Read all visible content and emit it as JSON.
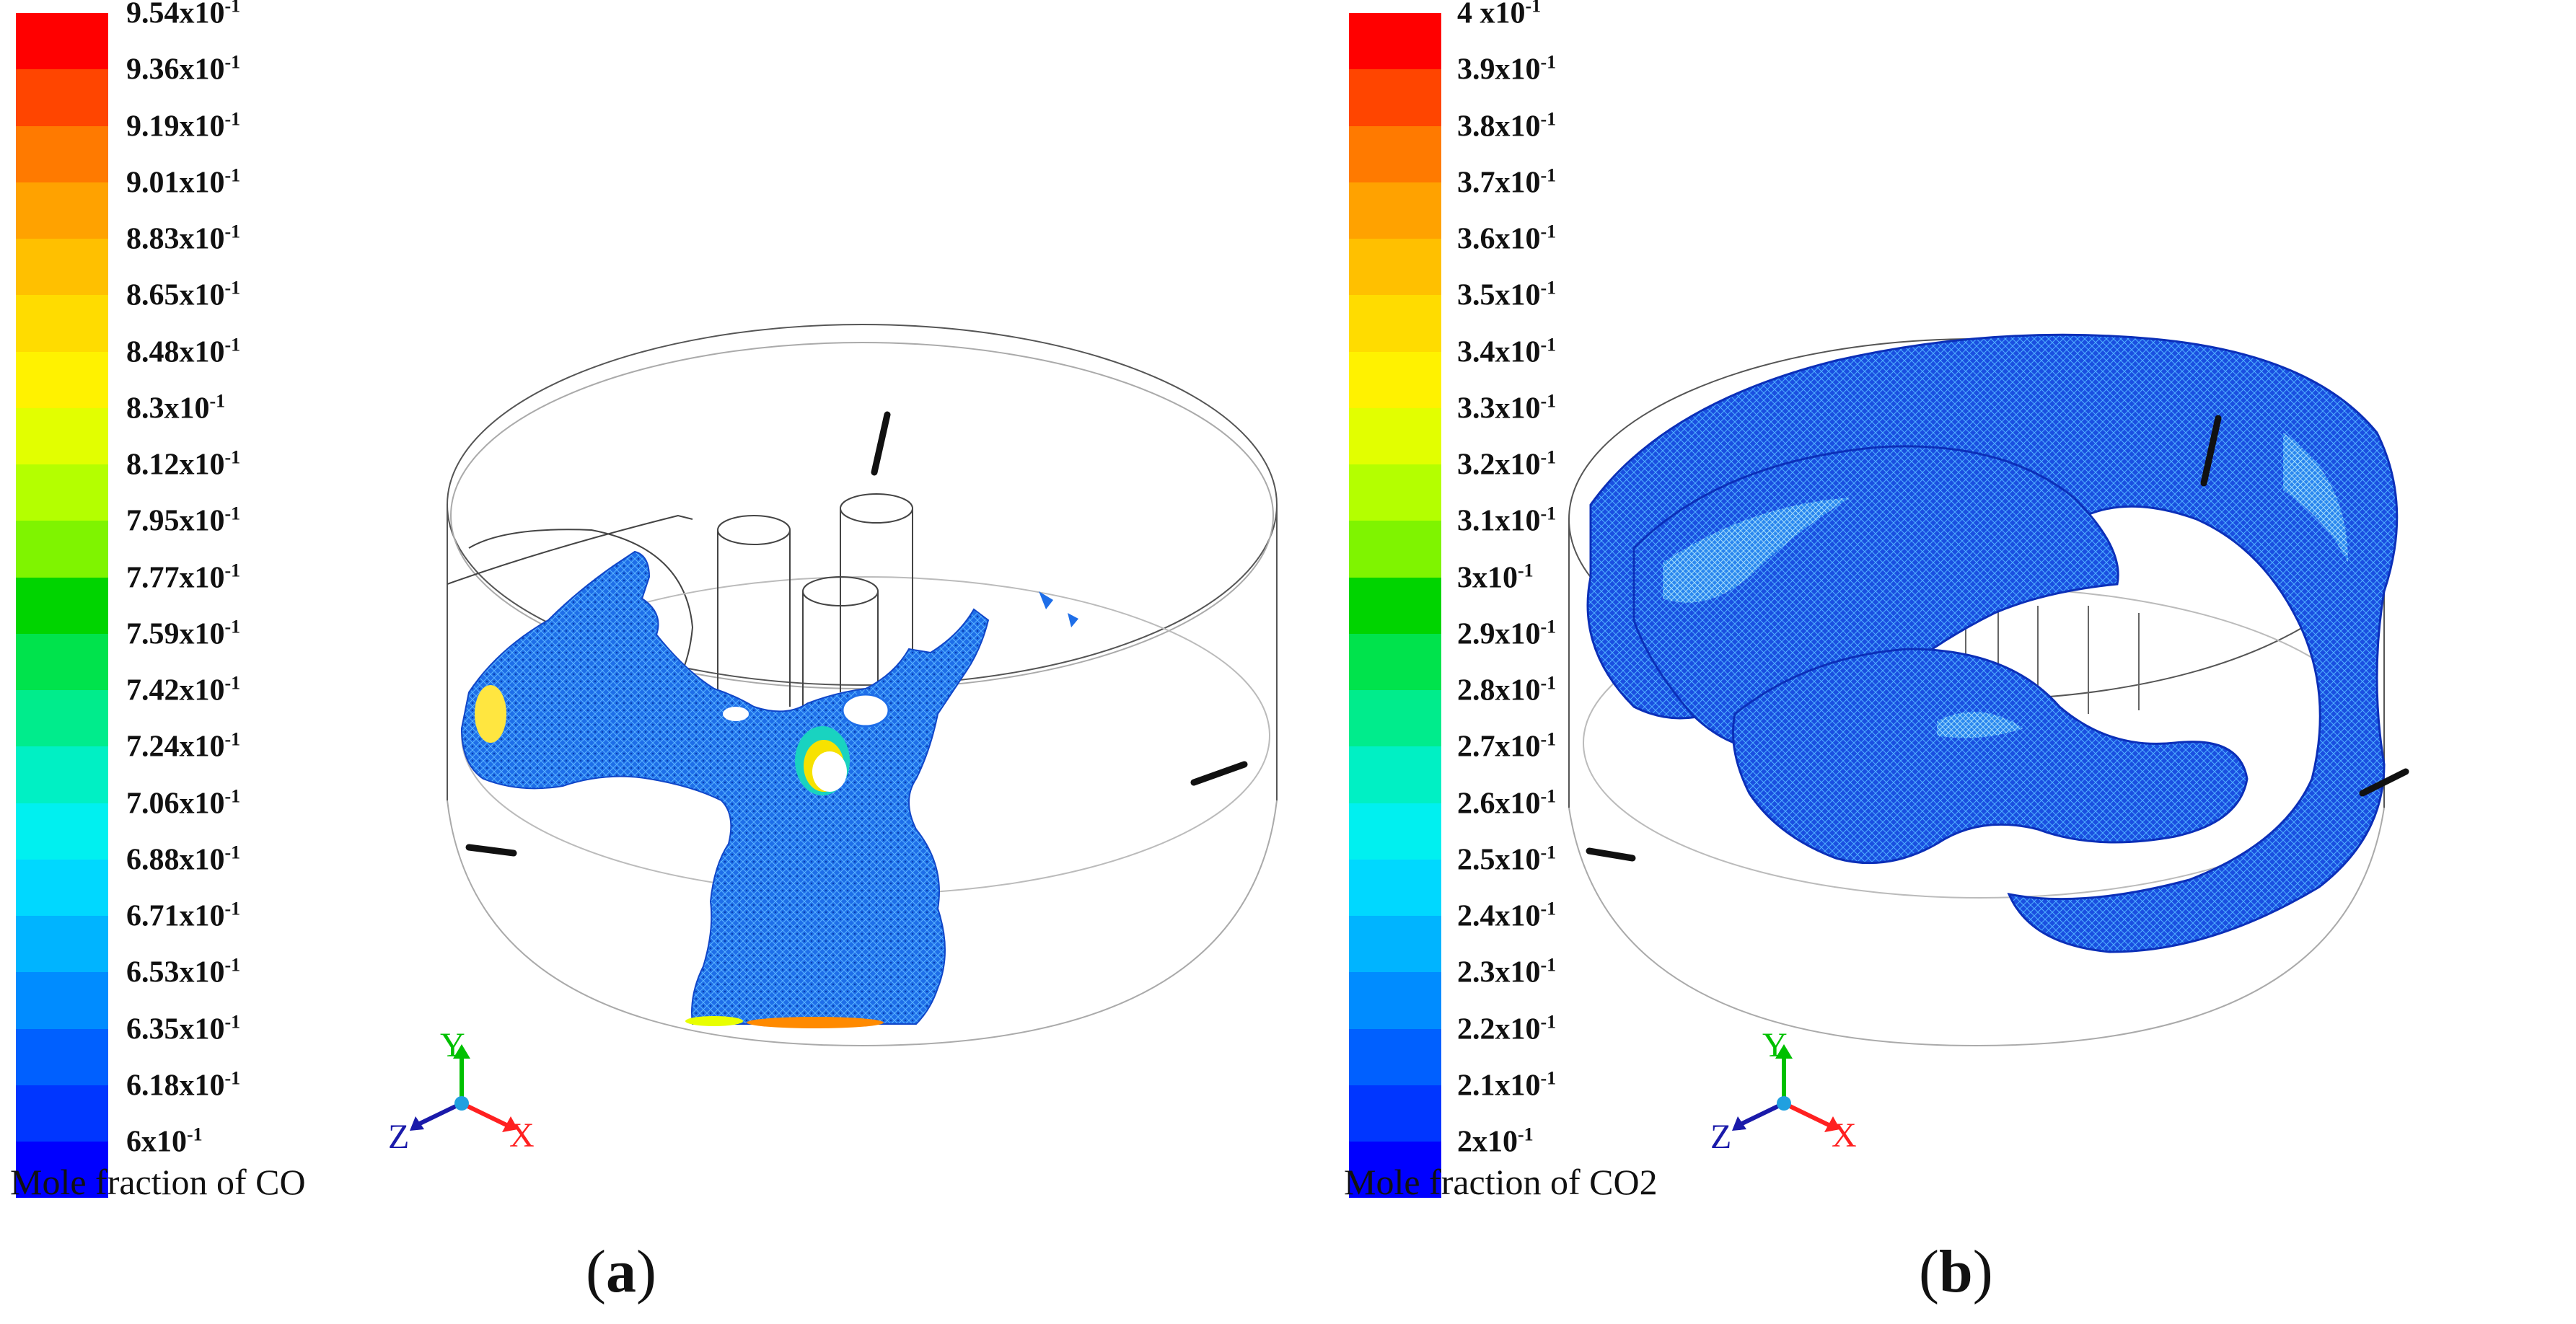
{
  "panels": [
    {
      "id": "a",
      "caption_letter": "a",
      "colorbar_title": "Mole fraction of CO",
      "colorbar_labels": [
        "9.54x10",
        "9.36x10",
        "9.19x10",
        "9.01x10",
        "8.83x10",
        "8.65x10",
        "8.48x10",
        "8.3x10",
        "8.12x10",
        "7.95x10",
        "7.77x10",
        "7.59x10",
        "7.42x10",
        "7.24x10",
        "7.06x10",
        "6.88x10",
        "6.71x10",
        "6.53x10",
        "6.35x10",
        "6.18x10",
        "6x10"
      ],
      "exponent": "-1",
      "axes": {
        "y": "Y",
        "z": "Z",
        "x": "X"
      }
    },
    {
      "id": "b",
      "caption_letter": "b",
      "colorbar_title": "Mole fraction of CO2",
      "colorbar_labels": [
        "4 x10",
        "3.9x10",
        "3.8x10",
        "3.7x10",
        "3.6x10",
        "3.5x10",
        "3.4x10",
        "3.3x10",
        "3.2x10",
        "3.1x10",
        "3x10",
        "2.9x10",
        "2.8x10",
        "2.7x10",
        "2.6x10",
        "2.5x10",
        "2.4x10",
        "2.3x10",
        "2.2x10",
        "2.1x10",
        "2x10"
      ],
      "exponent": "-1",
      "axes": {
        "y": "Y",
        "z": "Z",
        "x": "X"
      }
    }
  ],
  "colormap": [
    "#ff0000",
    "#ff4500",
    "#ff7a00",
    "#ffa200",
    "#ffc000",
    "#ffdc00",
    "#fff200",
    "#e2ff00",
    "#b4ff00",
    "#7ff400",
    "#00d400",
    "#00e34c",
    "#00ec8c",
    "#00f0c4",
    "#00f0f0",
    "#00d8ff",
    "#00b4ff",
    "#008cff",
    "#0060ff",
    "#0036ff",
    "#0000ff"
  ],
  "colors": {
    "axis_y": "#00c000",
    "axis_x": "#ff2020",
    "axis_z": "#1a1aaa",
    "origin": "#20a0e0"
  }
}
